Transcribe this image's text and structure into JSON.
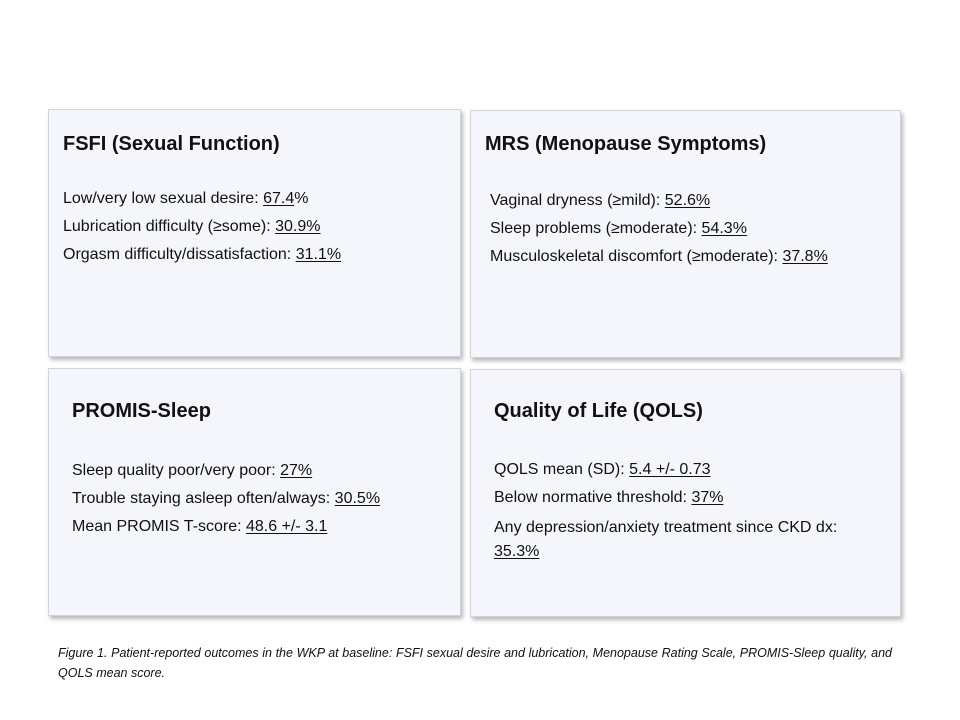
{
  "panels": {
    "fsfi": {
      "title": "FSFI (Sexual Function)",
      "items": [
        {
          "label": "Low/very low sexual desire: ",
          "value": "67.4",
          "suffix": "%"
        },
        {
          "label": "Lubrication difficulty (≥some): ",
          "value": "30.9%",
          "suffix": ""
        },
        {
          "label": "Orgasm difficulty/dissatisfaction: ",
          "value": "31.1%",
          "suffix": ""
        }
      ]
    },
    "mrs": {
      "title": "MRS (Menopause Symptoms)",
      "items": [
        {
          "label": "Vaginal dryness (≥mild): ",
          "value": "52.6%",
          "suffix": ""
        },
        {
          "label": "Sleep problems (≥moderate): ",
          "value": "54.3%",
          "suffix": ""
        },
        {
          "label": "Musculoskeletal discomfort (≥moderate): ",
          "value": "37.8%",
          "suffix": ""
        }
      ]
    },
    "promis": {
      "title": "PROMIS-Sleep",
      "items": [
        {
          "label": "Sleep quality poor/very poor: ",
          "value": "27%",
          "suffix": ""
        },
        {
          "label": "Trouble staying asleep often/always: ",
          "value": "30.5%",
          "suffix": ""
        },
        {
          "label": "Mean PROMIS T-score: ",
          "value": "48.6 +/- 3.1",
          "suffix": ""
        }
      ]
    },
    "qols": {
      "title": "Quality of Life (QOLS)",
      "items": [
        {
          "label": "QOLS mean (SD): ",
          "value": "5.4 +/- 0.73",
          "suffix": ""
        },
        {
          "label": "Below normative threshold: ",
          "value": "37%",
          "suffix": ""
        },
        {
          "label": "Any depression/anxiety treatment since CKD dx: ",
          "value": "35.3%",
          "suffix": ""
        }
      ]
    }
  },
  "caption": "Figure 1. Patient-reported outcomes in the WKP at baseline: FSFI sexual desire and lubrication, Menopause Rating Scale, PROMIS-Sleep quality, and QOLS mean score.",
  "colors": {
    "card_background": "#f4f6fb",
    "card_border": "#cfd3da",
    "text": "#111111"
  }
}
